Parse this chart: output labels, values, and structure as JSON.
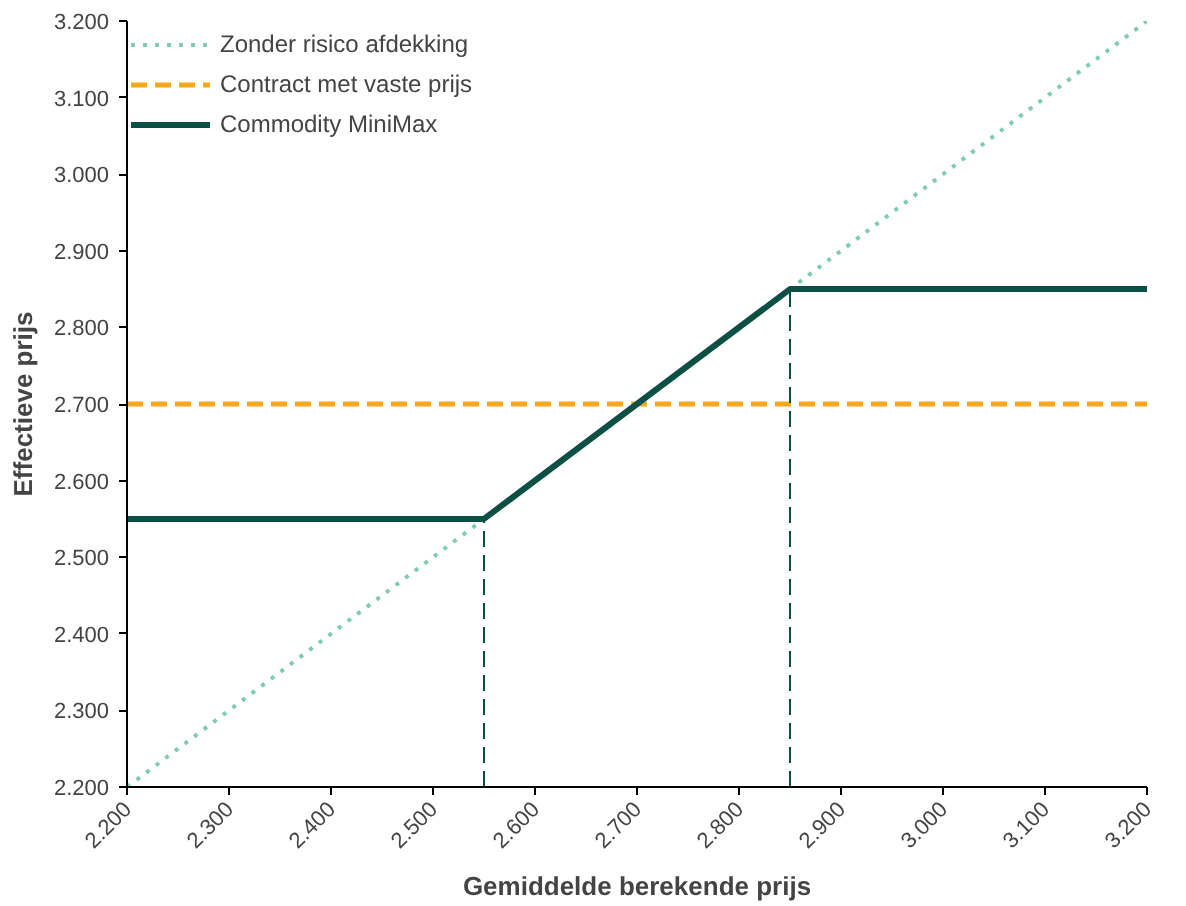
{
  "chart_data": {
    "type": "line",
    "xlabel": "Gemiddelde berekende prijs",
    "ylabel": "Effectieve prijs",
    "xlim": [
      2200,
      3200
    ],
    "ylim": [
      2200,
      3200
    ],
    "xticks": [
      {
        "value": 2200,
        "label": "2.200"
      },
      {
        "value": 2300,
        "label": "2.300"
      },
      {
        "value": 2400,
        "label": "2.400"
      },
      {
        "value": 2500,
        "label": "2.500"
      },
      {
        "value": 2600,
        "label": "2.600"
      },
      {
        "value": 2700,
        "label": "2.700"
      },
      {
        "value": 2800,
        "label": "2.800"
      },
      {
        "value": 2900,
        "label": "2.900"
      },
      {
        "value": 3000,
        "label": "3.000"
      },
      {
        "value": 3100,
        "label": "3.100"
      },
      {
        "value": 3200,
        "label": "3.200"
      }
    ],
    "yticks": [
      {
        "value": 2200,
        "label": "2.200"
      },
      {
        "value": 2300,
        "label": "2.300"
      },
      {
        "value": 2400,
        "label": "2.400"
      },
      {
        "value": 2500,
        "label": "2.500"
      },
      {
        "value": 2600,
        "label": "2.600"
      },
      {
        "value": 2700,
        "label": "2.700"
      },
      {
        "value": 2800,
        "label": "2.800"
      },
      {
        "value": 2900,
        "label": "2.900"
      },
      {
        "value": 3000,
        "label": "3.000"
      },
      {
        "value": 3100,
        "label": "3.100"
      },
      {
        "value": 3200,
        "label": "3.200"
      }
    ],
    "grid": false,
    "legend": "top left",
    "series": [
      {
        "name": "Zonder risico afdekking",
        "color": "#7fcbb8",
        "x": [
          2200,
          3200
        ],
        "values": [
          2200,
          3200
        ],
        "line_style": "dotted"
      },
      {
        "name": "Contract met vaste prijs",
        "color": "#f5a81c",
        "x": [
          2200,
          3200
        ],
        "values": [
          2700,
          2700
        ],
        "line_style": "dashed"
      },
      {
        "name": "Commodity MiniMax",
        "color": "#0b4f45",
        "x": [
          2200,
          2550,
          2850,
          3200
        ],
        "values": [
          2550,
          2550,
          2850,
          2850
        ],
        "line_style": "solid"
      },
      {
        "color": "#0b4f45",
        "x": [
          2550,
          2550
        ],
        "values": [
          2200,
          2550
        ],
        "line_style": "dashed"
      },
      {
        "color": "#0b4f45",
        "x": [
          2850,
          2850
        ],
        "values": [
          2200,
          2850
        ],
        "line_style": "dashed"
      }
    ]
  }
}
